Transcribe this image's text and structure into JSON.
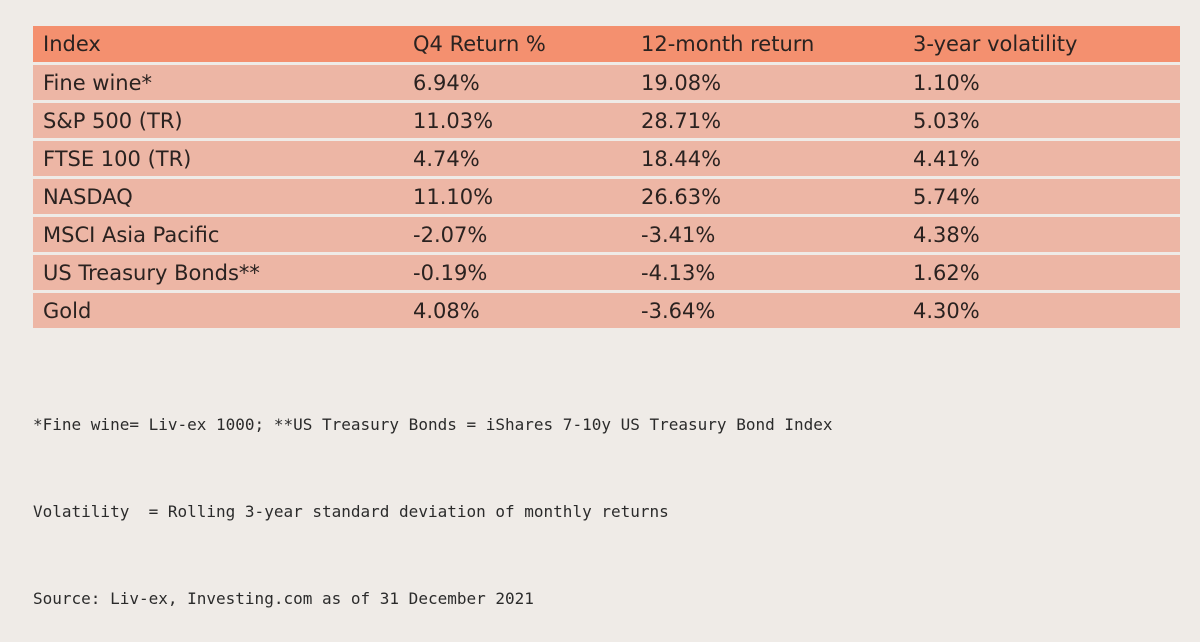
{
  "table": {
    "headers": [
      "Index",
      "Q4 Return %",
      "12-month return",
      "3-year volatility"
    ],
    "rows": [
      [
        "Fine wine*",
        "6.94%",
        "19.08%",
        "1.10%"
      ],
      [
        "S&P 500 (TR)",
        "11.03%",
        "28.71%",
        "5.03%"
      ],
      [
        "FTSE 100 (TR)",
        "4.74%",
        "18.44%",
        "4.41%"
      ],
      [
        "NASDAQ",
        "11.10%",
        "26.63%",
        "5.74%"
      ],
      [
        "MSCI Asia Pacific",
        "-2.07%",
        "-3.41%",
        "4.38%"
      ],
      [
        "US Treasury Bonds**",
        "-0.19%",
        "-4.13%",
        "1.62%"
      ],
      [
        "Gold",
        "4.08%",
        "-3.64%",
        "4.30%"
      ]
    ]
  },
  "notes": [
    "*Fine wine= Liv-ex 1000; **US Treasury Bonds = iShares 7-10y US Treasury Bond Index",
    "Volatility  = Rolling 3-year standard deviation of monthly returns",
    "Source: Liv-ex, Investing.com as of 31 December 2021"
  ],
  "colors": {
    "header_bg": "#f4906f",
    "row_bg": "#edb6a5",
    "page_bg": "#efebe7"
  }
}
